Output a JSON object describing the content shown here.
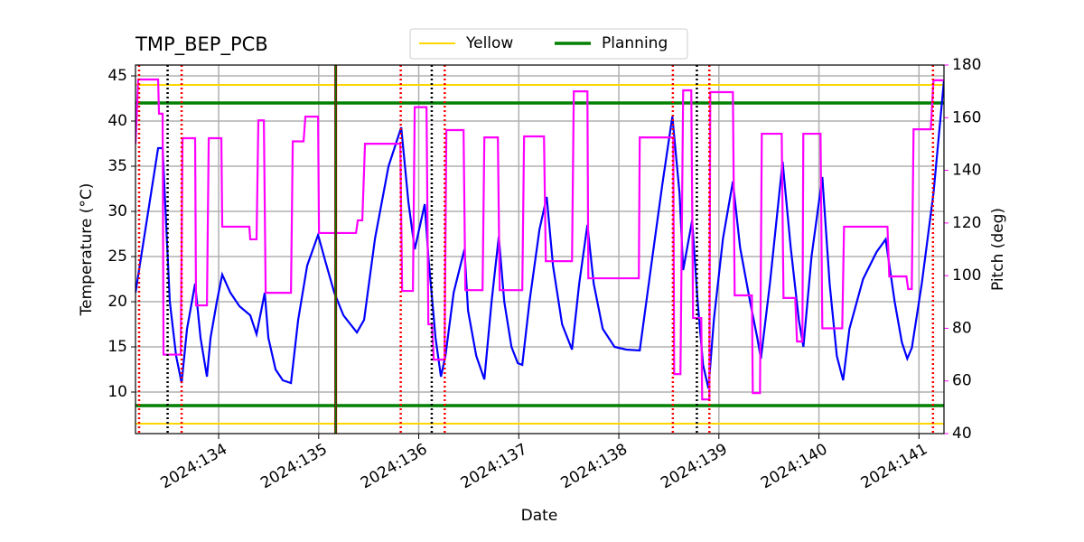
{
  "chart_data": {
    "type": "line",
    "title": "TMP_BEP_PCB",
    "x_label": "Date",
    "y_label": "Temperature (°C)",
    "y2_label": "Pitch (deg)",
    "y2_color": "magenta",
    "grid": true,
    "legend": "upper center",
    "xlim": [
      133.169,
      141.25
    ],
    "xticks": [
      {
        "value": 134,
        "label": "2024:134"
      },
      {
        "value": 135,
        "label": "2024:135"
      },
      {
        "value": 136,
        "label": "2024:136"
      },
      {
        "value": 137,
        "label": "2024:137"
      },
      {
        "value": 138,
        "label": "2024:138"
      },
      {
        "value": 139,
        "label": "2024:139"
      },
      {
        "value": 140,
        "label": "2024:140"
      },
      {
        "value": 141,
        "label": "2024:141"
      }
    ],
    "ylim": [
      5.4,
      46.2
    ],
    "yticks": [
      10,
      15,
      20,
      25,
      30,
      35,
      40,
      45
    ],
    "y2lim": [
      40,
      180
    ],
    "y2ticks": [
      40,
      60,
      80,
      100,
      120,
      140,
      160,
      180
    ],
    "limits": [
      {
        "name": "Yellow",
        "color": "gold",
        "values": [
          44,
          6.5
        ]
      },
      {
        "name": "Planning",
        "color": "green",
        "values": [
          42,
          8.5
        ]
      }
    ],
    "vlines": [
      {
        "x": 133.205,
        "color": "red",
        "style": "dotted"
      },
      {
        "x": 133.63,
        "color": "red",
        "style": "dotted"
      },
      {
        "x": 135.82,
        "color": "red",
        "style": "dotted"
      },
      {
        "x": 136.26,
        "color": "red",
        "style": "dotted"
      },
      {
        "x": 138.54,
        "color": "red",
        "style": "dotted"
      },
      {
        "x": 138.905,
        "color": "red",
        "style": "dotted"
      },
      {
        "x": 141.14,
        "color": "red",
        "style": "dotted"
      },
      {
        "x": 133.49,
        "color": "black",
        "style": "dotted"
      },
      {
        "x": 136.13,
        "color": "black",
        "style": "dotted"
      },
      {
        "x": 138.78,
        "color": "black",
        "style": "dotted"
      },
      {
        "x": 135.17,
        "color": "darkred",
        "style": "solid"
      },
      {
        "x": 135.17,
        "color": "green",
        "style": "solid"
      }
    ],
    "series": [
      {
        "color": "blue",
        "axis": "y",
        "x": [
          133.169,
          133.395,
          133.44,
          133.512,
          133.575,
          133.63,
          133.684,
          133.765,
          133.819,
          133.883,
          133.919,
          133.982,
          134.036,
          134.117,
          134.208,
          134.316,
          134.379,
          134.461,
          134.497,
          134.569,
          134.641,
          134.723,
          134.795,
          134.885,
          134.994,
          135.066,
          135.156,
          135.247,
          135.382,
          135.454,
          135.563,
          135.698,
          135.825,
          135.897,
          135.96,
          136.06,
          136.096,
          136.168,
          136.222,
          136.267,
          136.349,
          136.457,
          136.493,
          136.575,
          136.656,
          136.728,
          136.8,
          136.855,
          136.927,
          136.99,
          137.035,
          137.107,
          137.207,
          137.279,
          137.342,
          137.433,
          137.532,
          137.604,
          137.686,
          137.749,
          137.839,
          137.957,
          138.074,
          138.209,
          138.336,
          138.435,
          138.535,
          138.607,
          138.643,
          138.733,
          138.788,
          138.842,
          138.896,
          138.95,
          139.041,
          139.14,
          139.212,
          139.312,
          139.384,
          139.42,
          139.51,
          139.637,
          139.718,
          139.799,
          139.845,
          139.926,
          140.034,
          140.107,
          140.179,
          140.242,
          140.305,
          140.441,
          140.576,
          140.667,
          140.757,
          140.829,
          140.883,
          140.929,
          141.028,
          141.145,
          141.25
        ],
        "values": [
          21,
          37,
          37,
          20,
          14,
          11,
          17,
          22,
          16,
          11.7,
          16,
          20,
          23,
          21,
          19.5,
          18.5,
          16.4,
          21,
          16,
          12.5,
          11.3,
          11,
          18,
          24,
          27.4,
          24.5,
          21,
          18.5,
          16.6,
          18,
          27,
          35,
          39.3,
          31,
          25.8,
          30.8,
          25,
          16,
          11.7,
          14,
          21,
          25.8,
          19,
          14,
          11.4,
          20,
          27.2,
          20,
          15,
          13.2,
          13,
          20,
          28,
          31.6,
          24,
          17.5,
          14.7,
          22,
          28.5,
          22,
          17,
          15,
          14.7,
          14.6,
          25,
          33,
          40.5,
          32,
          23.5,
          29,
          20,
          13,
          10.4,
          18,
          27,
          33.3,
          26,
          20,
          16,
          13.7,
          22,
          35.5,
          26,
          18,
          15,
          25,
          33.8,
          22,
          14,
          11.3,
          17,
          22.5,
          25.5,
          26.9,
          20,
          15.5,
          13.7,
          14.9,
          22,
          32,
          44.5
        ]
      },
      {
        "color": "magenta",
        "axis": "y2",
        "x": [
          133.169,
          133.196,
          133.395,
          133.404,
          133.44,
          133.449,
          133.621,
          133.639,
          133.765,
          133.774,
          133.883,
          133.901,
          134.027,
          134.036,
          134.307,
          134.316,
          134.379,
          134.397,
          134.452,
          134.47,
          134.723,
          134.741,
          134.849,
          134.867,
          134.994,
          135.003,
          135.373,
          135.391,
          135.436,
          135.463,
          135.816,
          135.834,
          135.942,
          135.96,
          136.078,
          136.096,
          136.132,
          136.15,
          136.258,
          136.276,
          136.448,
          136.466,
          136.638,
          136.656,
          136.791,
          136.809,
          137.035,
          137.053,
          137.252,
          137.27,
          137.532,
          137.55,
          137.686,
          137.695,
          138.2,
          138.209,
          138.544,
          138.553,
          138.616,
          138.643,
          138.724,
          138.742,
          138.824,
          138.833,
          138.905,
          138.914,
          139.14,
          139.158,
          139.33,
          139.339,
          139.411,
          139.429,
          139.628,
          139.646,
          139.763,
          139.781,
          139.835,
          139.844,
          140.016,
          140.034,
          140.233,
          140.251,
          140.685,
          140.703,
          140.874,
          140.892,
          140.928,
          140.946,
          141.118,
          141.145,
          141.25
        ],
        "values": [
          150,
          174.5,
          174.5,
          161.5,
          161.5,
          70,
          70,
          152.2,
          152.2,
          88.7,
          88.7,
          152.2,
          152.2,
          118.6,
          118.6,
          113.8,
          113.8,
          159,
          159,
          93.5,
          93.5,
          151,
          151,
          160.4,
          160.4,
          116.2,
          116.2,
          121,
          121,
          150.1,
          150.1,
          94.2,
          94.2,
          164,
          164,
          81.5,
          81.5,
          68.1,
          68.1,
          155.3,
          155.3,
          94.5,
          94.5,
          152.5,
          152.5,
          94.5,
          94.5,
          152.9,
          152.9,
          105.5,
          105.5,
          170,
          170,
          99,
          99,
          152.5,
          152.5,
          62.6,
          62.6,
          170.4,
          170.4,
          83.9,
          83.9,
          53,
          53,
          169.7,
          169.7,
          92.5,
          92.5,
          55.4,
          55.4,
          153.9,
          153.9,
          91.5,
          91.5,
          75,
          75,
          153.9,
          153.9,
          80,
          80,
          118.6,
          118.6,
          99.7,
          99.7,
          94.9,
          94.9,
          155.6,
          155.6,
          174.2,
          174.2
        ]
      }
    ]
  }
}
